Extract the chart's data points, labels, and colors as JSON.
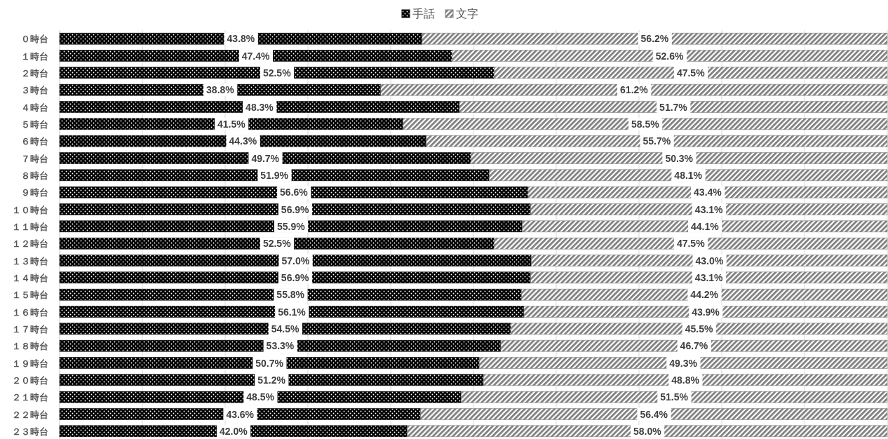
{
  "chart_data": {
    "type": "bar",
    "orientation": "horizontal",
    "stacked": true,
    "legend": "top",
    "grid": "x",
    "tick_labels": "y",
    "categories": [
      "０時台",
      "１時台",
      "２時台",
      "３時台",
      "４時台",
      "５時台",
      "６時台",
      "７時台",
      "８時台",
      "９時台",
      "１０時台",
      "１１時台",
      "１２時台",
      "１３時台",
      "１４時台",
      "１５時台",
      "１６時台",
      "１７時台",
      "１８時台",
      "１９時台",
      "２０時台",
      "２１時台",
      "２２時台",
      "２３時台"
    ],
    "xlim": [
      0,
      100
    ],
    "xticks": [
      {
        "value": 0,
        "label": null
      },
      {
        "value": 10,
        "label": null
      },
      {
        "value": 20,
        "label": null
      },
      {
        "value": 30,
        "label": null
      },
      {
        "value": 40,
        "label": null
      },
      {
        "value": 50,
        "label": null
      },
      {
        "value": 60,
        "label": null
      },
      {
        "value": 70,
        "label": null
      },
      {
        "value": 80,
        "label": null
      },
      {
        "value": 90,
        "label": null
      },
      {
        "value": 100,
        "label": null
      }
    ],
    "series": [
      {
        "name": "手話",
        "color": "#000000",
        "values": [
          43.8,
          47.4,
          52.5,
          38.8,
          48.3,
          41.5,
          44.3,
          49.7,
          51.9,
          56.6,
          56.9,
          55.9,
          52.5,
          57.0,
          56.9,
          55.8,
          56.1,
          54.5,
          53.3,
          50.7,
          51.2,
          48.5,
          43.6,
          42.0
        ],
        "value_labels": [
          "43.8%",
          "47.4%",
          "52.5%",
          "38.8%",
          "48.3%",
          "41.5%",
          "44.3%",
          "49.7%",
          "51.9%",
          "56.6%",
          "56.9%",
          "55.9%",
          "52.5%",
          "57.0%",
          "56.9%",
          "55.8%",
          "56.1%",
          "54.5%",
          "53.3%",
          "50.7%",
          "51.2%",
          "48.5%",
          "43.6%",
          "42.0%"
        ]
      },
      {
        "name": "文字",
        "color": "#7f7f7f",
        "values": [
          56.2,
          52.6,
          47.5,
          61.2,
          51.7,
          58.5,
          55.7,
          50.3,
          48.1,
          43.4,
          43.1,
          44.1,
          47.5,
          43.0,
          43.1,
          44.2,
          43.9,
          45.5,
          46.7,
          49.3,
          48.8,
          51.5,
          56.4,
          58.0
        ],
        "value_labels": [
          "56.2%",
          "52.6%",
          "47.5%",
          "61.2%",
          "51.7%",
          "58.5%",
          "55.7%",
          "50.3%",
          "48.1%",
          "43.4%",
          "43.1%",
          "44.1%",
          "47.5%",
          "43.0%",
          "43.1%",
          "44.2%",
          "43.9%",
          "45.5%",
          "46.7%",
          "49.3%",
          "48.8%",
          "51.5%",
          "56.4%",
          "58.0%"
        ]
      }
    ]
  }
}
